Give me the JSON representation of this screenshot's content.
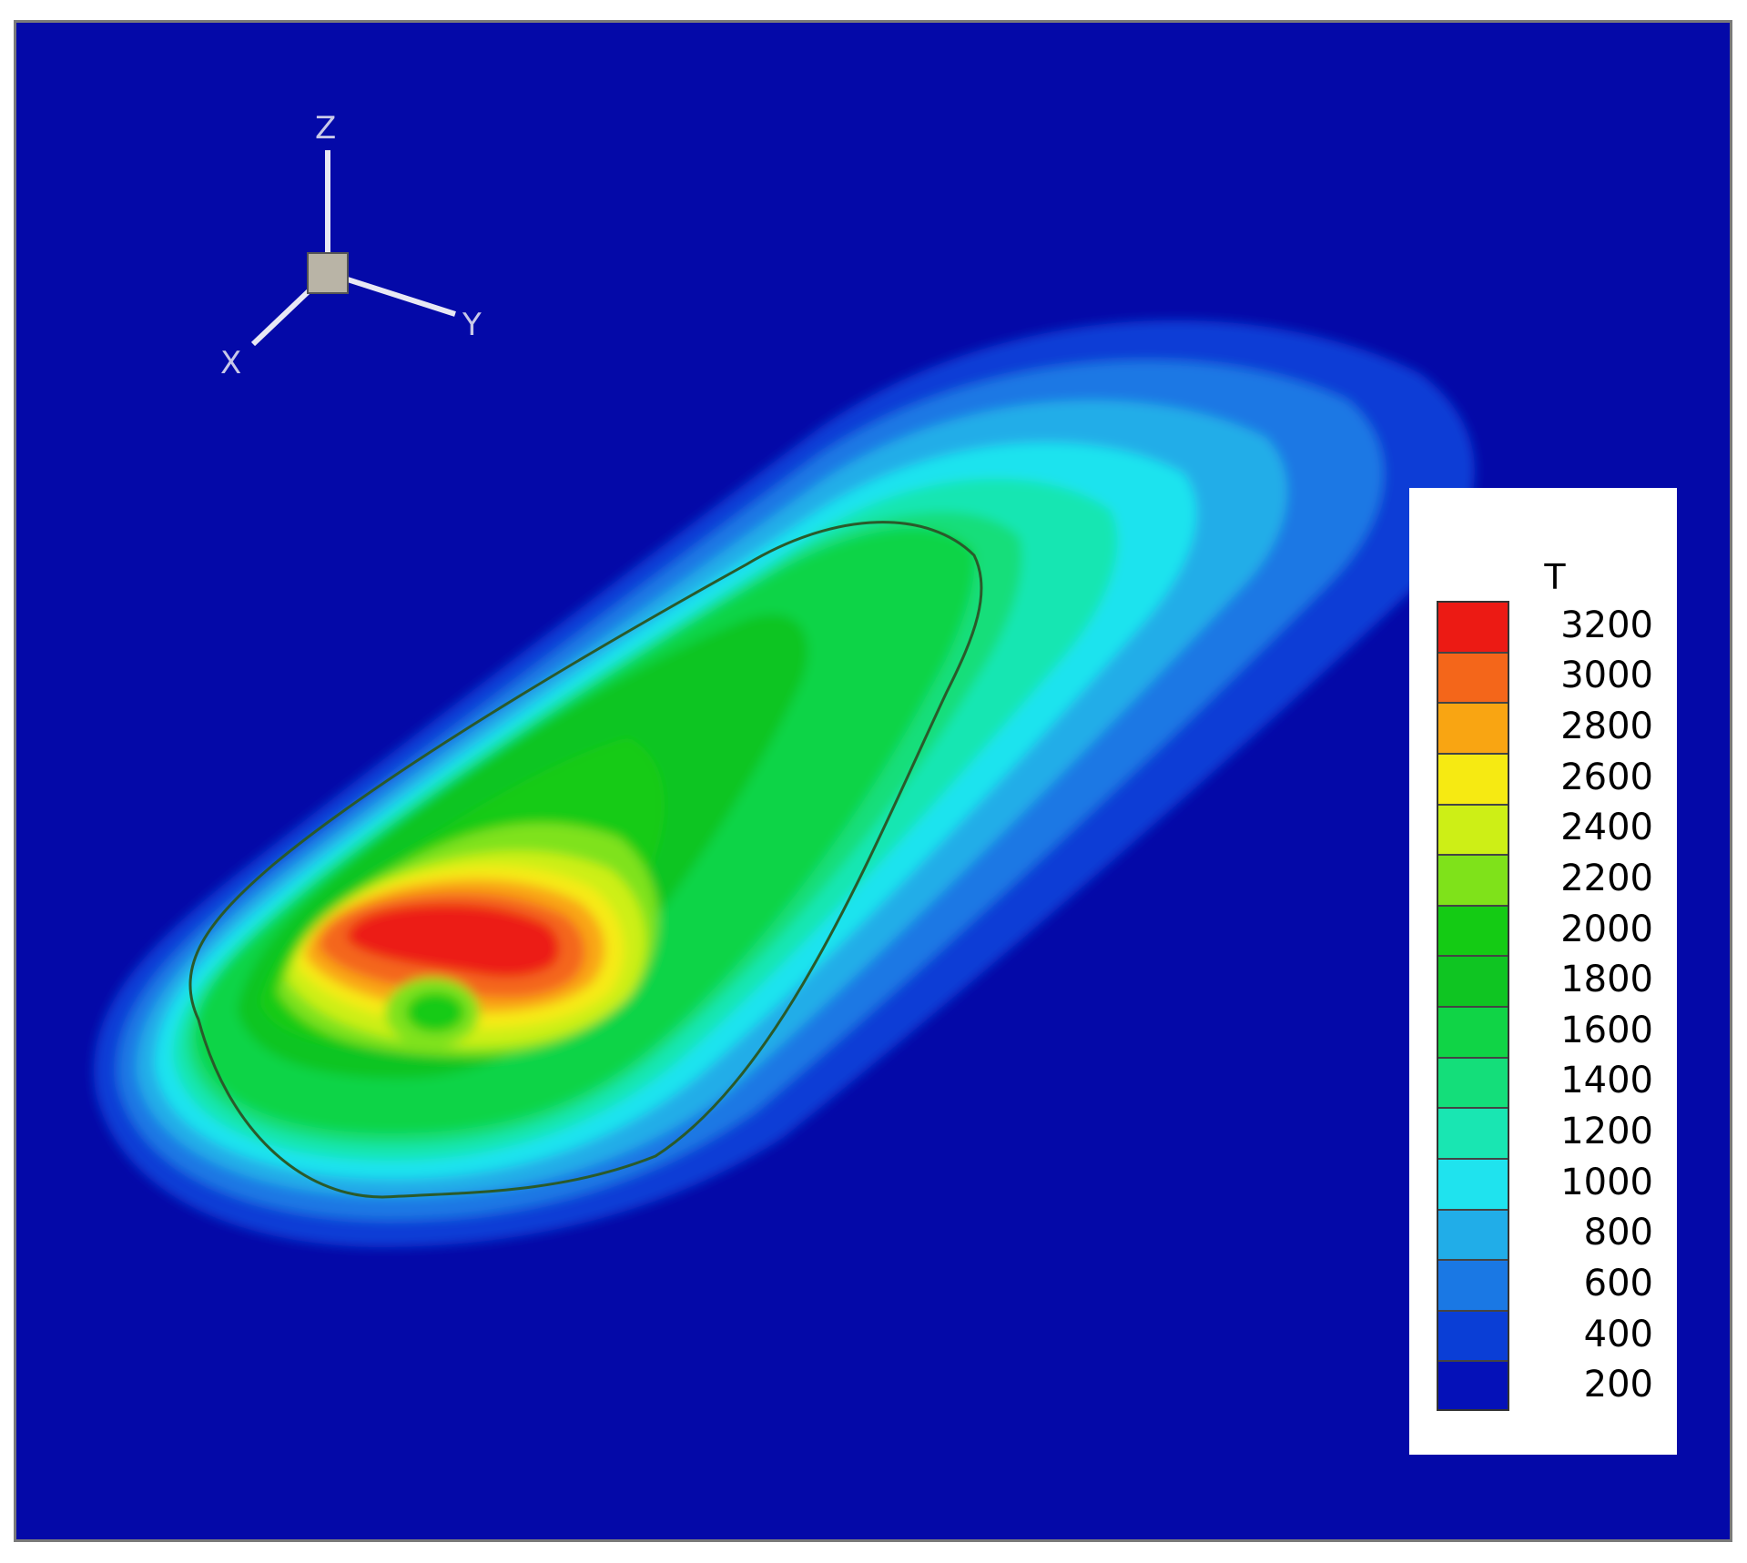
{
  "chart_data": {
    "type": "heatmap",
    "colorbar": {
      "title": "T",
      "ticks": [
        200,
        400,
        600,
        800,
        1000,
        1200,
        1400,
        1600,
        1800,
        2000,
        2200,
        2400,
        2600,
        2800,
        3000,
        3200
      ],
      "levels": [
        {
          "value": 200,
          "color": "#0511b8"
        },
        {
          "value": 400,
          "color": "#0a3ed6"
        },
        {
          "value": 600,
          "color": "#1a78e4"
        },
        {
          "value": 800,
          "color": "#21ade8"
        },
        {
          "value": 1000,
          "color": "#1fe3ee"
        },
        {
          "value": 1200,
          "color": "#19e6b2"
        },
        {
          "value": 1400,
          "color": "#14de7a"
        },
        {
          "value": 1600,
          "color": "#10d446"
        },
        {
          "value": 1800,
          "color": "#0fc522"
        },
        {
          "value": 2000,
          "color": "#14cb14"
        },
        {
          "value": 2200,
          "color": "#7fe21a"
        },
        {
          "value": 2400,
          "color": "#cdef16"
        },
        {
          "value": 2600,
          "color": "#f6ea12"
        },
        {
          "value": 2800,
          "color": "#f9a512"
        },
        {
          "value": 3000,
          "color": "#f4661a"
        },
        {
          "value": 3200,
          "color": "#ec1a14"
        }
      ],
      "placement": "right"
    },
    "background_value": 200,
    "axes_triad": [
      "Z",
      "Y",
      "X"
    ],
    "isoline_value": 2000
  }
}
